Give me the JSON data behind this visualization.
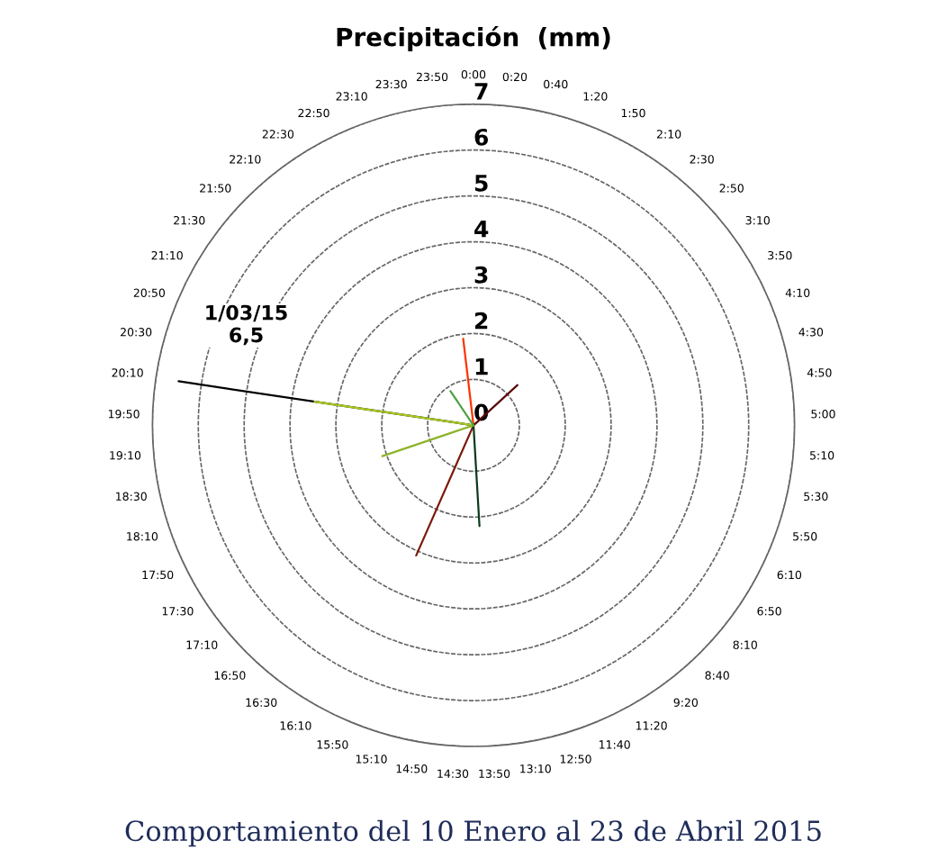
{
  "chart_data": {
    "type": "radar",
    "title": "Precipitación  (mm)",
    "categories": [
      "0:00",
      "0:20",
      "0:40",
      "1:20",
      "1:50",
      "2:10",
      "2:30",
      "2:50",
      "3:10",
      "3:50",
      "4:10",
      "4:30",
      "4:50",
      "5:00",
      "5:10",
      "5:30",
      "5:50",
      "6:10",
      "6:50",
      "8:10",
      "8:40",
      "9:20",
      "11:20",
      "11:40",
      "12:50",
      "13:10",
      "13:50",
      "14:30",
      "14:50",
      "15:10",
      "15:50",
      "16:10",
      "16:30",
      "16:50",
      "17:10",
      "17:30",
      "17:50",
      "18:10",
      "18:30",
      "19:10",
      "19:50",
      "20:10",
      "20:30",
      "20:50",
      "21:10",
      "21:30",
      "21:50",
      "22:10",
      "22:30",
      "22:50",
      "23:10",
      "23:30",
      "23:50"
    ],
    "series": [
      {
        "color": "#000000",
        "values": [
          0,
          0,
          0,
          0,
          0,
          0,
          0,
          0,
          0,
          0,
          0,
          0,
          0,
          0,
          0,
          0,
          0,
          0,
          0,
          0,
          0,
          0,
          0,
          0,
          0,
          0,
          0,
          0,
          0,
          0,
          0,
          0,
          0,
          0,
          0,
          0,
          0,
          0,
          0,
          0,
          0,
          6.5,
          0,
          0,
          0,
          0,
          0,
          0,
          0,
          0,
          0,
          0,
          0
        ]
      },
      {
        "color": "#a8c820",
        "values": [
          0,
          0,
          0,
          0,
          0,
          0,
          0,
          0,
          0,
          0,
          0,
          0,
          0,
          0,
          0,
          0,
          0,
          0,
          0,
          0,
          0,
          0,
          0,
          0,
          0,
          0,
          0,
          0,
          0,
          0,
          0,
          0,
          0,
          0,
          0,
          0,
          0,
          0,
          0,
          0,
          0,
          3.5,
          0,
          0,
          0,
          0,
          0,
          0,
          0,
          0,
          0,
          0,
          0
        ]
      },
      {
        "color": "#ff3300",
        "values": [
          0,
          0,
          0,
          0,
          0,
          0,
          0,
          0,
          0,
          0,
          0,
          0,
          0,
          0,
          0,
          0,
          0,
          0,
          0,
          0,
          0,
          0,
          0,
          0,
          0,
          0,
          0,
          0,
          0,
          0,
          0,
          0,
          0,
          0,
          0,
          0,
          0,
          0,
          0,
          0,
          0,
          0,
          0,
          0,
          0,
          0,
          0,
          0,
          0,
          0,
          0,
          0,
          1.9
        ]
      },
      {
        "color": "#5a0a0a",
        "values": [
          0,
          0,
          0,
          0,
          0,
          0,
          0,
          1.3,
          0,
          0,
          0,
          0,
          0,
          0,
          0,
          0,
          0,
          0,
          0,
          0,
          0,
          0,
          0,
          0,
          0,
          0,
          0,
          0,
          0,
          0,
          0,
          0,
          0,
          0,
          0,
          0,
          0,
          0,
          0,
          0,
          0,
          0,
          0,
          0,
          0,
          0,
          0,
          0,
          0,
          0,
          0,
          0,
          0
        ]
      },
      {
        "color": "#7a1a0a",
        "values": [
          0,
          0,
          0,
          0,
          0,
          0,
          0,
          0,
          0,
          0,
          0,
          0,
          0,
          0,
          0,
          0,
          0,
          0,
          0,
          0,
          0,
          0,
          0,
          0,
          0,
          0,
          0,
          0,
          0,
          0,
          3.1,
          0,
          0,
          0,
          0,
          0,
          0,
          0,
          0,
          0,
          0,
          0,
          0,
          0,
          0,
          0,
          0,
          0,
          0,
          0,
          0,
          0,
          0
        ]
      },
      {
        "color": "#0a3a1a",
        "values": [
          0,
          0,
          0,
          0,
          0,
          0,
          0,
          0,
          0,
          0,
          0,
          0,
          0,
          0,
          0,
          0,
          0,
          0,
          0,
          0,
          0,
          0,
          0,
          0,
          0,
          0,
          2.2,
          0,
          0,
          0,
          0,
          0,
          0,
          0,
          0,
          0,
          0,
          0,
          0,
          0,
          0,
          0,
          0,
          0,
          0,
          0,
          0,
          0,
          0,
          0,
          0,
          0,
          0
        ]
      },
      {
        "color": "#8cb42a",
        "values": [
          0,
          0,
          0,
          0,
          0,
          0,
          0,
          0,
          0,
          0,
          0,
          0,
          0,
          0,
          0,
          0,
          0,
          0,
          0,
          0,
          0,
          0,
          0,
          0,
          0,
          0,
          0,
          0,
          0,
          0,
          0,
          0,
          0,
          0,
          0,
          0,
          0,
          2.1,
          0,
          0,
          0,
          0,
          0,
          0,
          0,
          0,
          0,
          0,
          0,
          0,
          0,
          0,
          0
        ]
      },
      {
        "color": "#4aa040",
        "values": [
          0,
          0,
          0,
          0,
          0,
          0,
          0,
          0,
          0,
          0,
          0,
          0,
          0,
          0,
          0,
          0,
          0,
          0,
          0,
          0,
          0,
          0,
          0,
          0,
          0,
          0,
          0,
          0,
          0,
          0,
          0,
          0,
          0,
          0,
          0,
          0,
          0,
          0,
          0,
          0,
          0,
          0,
          0,
          0,
          0,
          0,
          0,
          0,
          0.9,
          0,
          0,
          0,
          0
        ]
      }
    ],
    "ylim": [
      0,
      7
    ],
    "yticks": [
      0,
      1,
      2,
      3,
      4,
      5,
      6,
      7
    ],
    "grid": true,
    "legend": false,
    "annotations": [
      "1/03/15\n6,5",
      "Comportamiento del 10 Enero al 23 de Abril 2015"
    ]
  }
}
